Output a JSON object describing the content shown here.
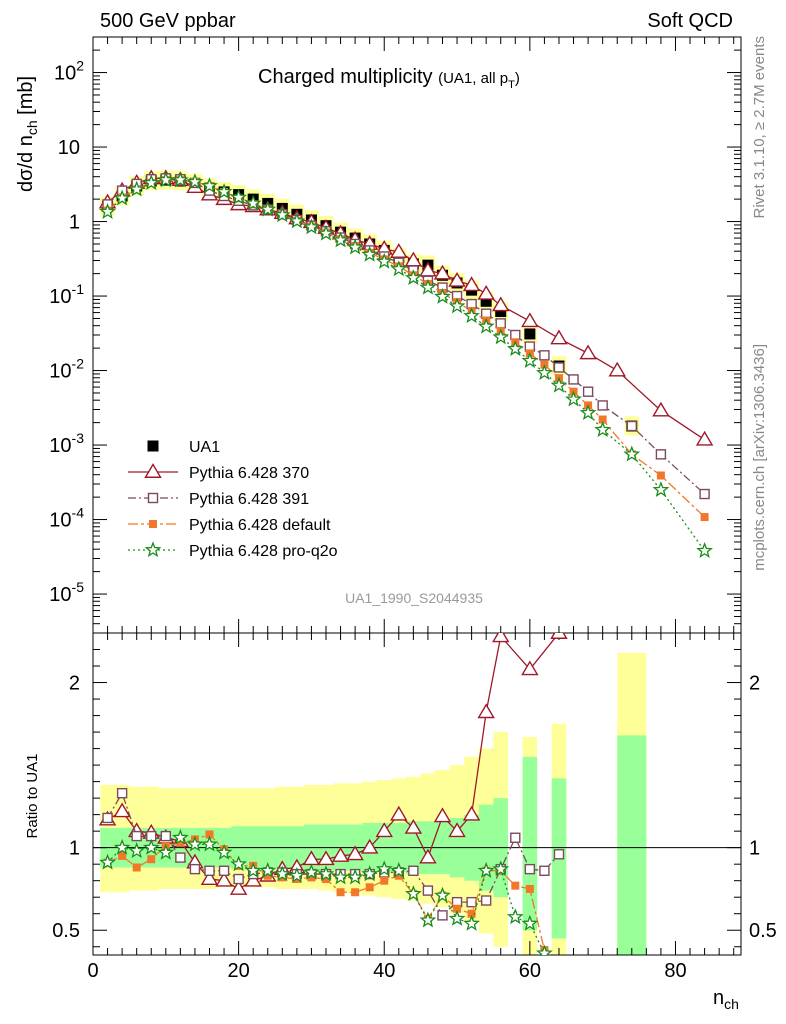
{
  "header": {
    "left": "500 GeV ppbar",
    "right": "Soft QCD"
  },
  "side_labels": {
    "rivet": "Rivet 3.1.10, ≥ 2.7M events",
    "source": "mcplots.cern.ch [arXiv:1306.3436]"
  },
  "watermark": "UA1_1990_S2044935",
  "chart_data": {
    "type": "scatter",
    "title": "Charged multiplicity",
    "title_sub": "(UA1, all p",
    "title_sub2": "T",
    "title_sub3": ")",
    "xlabel": "n",
    "xlabel_sub": "ch",
    "ylabel": "dσ/d n",
    "ylabel_sub": "ch",
    "ylabel_unit": " [mb]",
    "ratio_ylabel": "Ratio to UA1",
    "xlim": [
      0,
      89
    ],
    "ylim": [
      3e-06,
      300
    ],
    "ratio_ylim": [
      0.35,
      2.3
    ],
    "yscale": "log",
    "x_ticks": [
      "0",
      "20",
      "40",
      "60",
      "80"
    ],
    "y_ticks": [
      {
        "mant": "10",
        "exp": "-5"
      },
      {
        "mant": "10",
        "exp": "-4"
      },
      {
        "mant": "10",
        "exp": "-3"
      },
      {
        "mant": "10",
        "exp": "-2"
      },
      {
        "mant": "10",
        "exp": "-1"
      },
      {
        "mant": "1",
        "exp": ""
      },
      {
        "mant": "10",
        "exp": ""
      },
      {
        "mant": "10",
        "exp": "2"
      }
    ],
    "ratio_ticks": [
      "0.5",
      "1",
      "2"
    ],
    "legend_position": "lower-left",
    "data": {
      "name": "UA1",
      "x": [
        2,
        4,
        6,
        8,
        10,
        12,
        14,
        16,
        18,
        20,
        22,
        24,
        26,
        28,
        30,
        32,
        34,
        36,
        38,
        40,
        42,
        44,
        46,
        48,
        50,
        52,
        54,
        56,
        60,
        64,
        74
      ],
      "y": [
        1.6,
        2.2,
        3.0,
        3.5,
        3.6,
        3.5,
        3.2,
        2.8,
        2.5,
        2.3,
        2.0,
        1.75,
        1.5,
        1.25,
        1.05,
        0.88,
        0.72,
        0.6,
        0.5,
        0.41,
        0.33,
        0.27,
        0.26,
        0.19,
        0.15,
        0.12,
        0.085,
        0.062,
        0.031,
        0.0115,
        0.0018
      ]
    },
    "band_ratio": {
      "x": [
        1,
        3,
        5,
        7,
        9,
        11,
        13,
        15,
        17,
        19,
        21,
        23,
        25,
        27,
        29,
        31,
        33,
        35,
        37,
        39,
        41,
        43,
        45,
        47,
        49,
        51,
        53,
        55,
        57,
        59,
        61,
        63,
        65,
        72,
        76
      ],
      "green_lo": [
        0.88,
        0.88,
        0.88,
        0.88,
        0.88,
        0.88,
        0.88,
        0.88,
        0.88,
        0.87,
        0.87,
        0.87,
        0.87,
        0.87,
        0.86,
        0.86,
        0.86,
        0.86,
        0.85,
        0.85,
        0.85,
        0.84,
        0.84,
        0.84,
        0.82,
        0.8,
        0.74,
        0.7
      ],
      "green_hi": [
        1.12,
        1.12,
        1.12,
        1.12,
        1.12,
        1.12,
        1.12,
        1.12,
        1.12,
        1.13,
        1.13,
        1.13,
        1.13,
        1.13,
        1.14,
        1.14,
        1.14,
        1.14,
        1.15,
        1.15,
        1.15,
        1.16,
        1.16,
        1.16,
        1.18,
        1.2,
        1.26,
        1.3
      ],
      "yellow_lo": [
        0.73,
        0.73,
        0.74,
        0.74,
        0.75,
        0.75,
        0.75,
        0.75,
        0.76,
        0.76,
        0.76,
        0.76,
        0.75,
        0.75,
        0.75,
        0.74,
        0.73,
        0.72,
        0.71,
        0.7,
        0.69,
        0.68,
        0.66,
        0.64,
        0.6,
        0.55,
        0.48,
        0.4
      ],
      "yellow_hi": [
        1.38,
        1.38,
        1.37,
        1.37,
        1.36,
        1.36,
        1.36,
        1.36,
        1.36,
        1.36,
        1.36,
        1.36,
        1.37,
        1.37,
        1.38,
        1.38,
        1.39,
        1.39,
        1.4,
        1.41,
        1.42,
        1.43,
        1.45,
        1.47,
        1.5,
        1.55,
        1.6,
        1.7
      ],
      "extra": [
        {
          "x0": 59,
          "x1": 61,
          "green": [
            0.5,
            1.55
          ],
          "yellow": [
            0.35,
            1.67
          ]
        },
        {
          "x0": 63,
          "x1": 65,
          "green": [
            0.45,
            1.42
          ],
          "yellow": [
            0.35,
            1.75
          ]
        },
        {
          "x0": 72,
          "x1": 76,
          "green": [
            0.35,
            1.68
          ],
          "yellow": [
            0.35,
            2.18
          ]
        }
      ]
    },
    "series": [
      {
        "name": "Pythia 6.428 370",
        "color": "#a0182a",
        "marker": "triangle",
        "dash": "",
        "x": [
          2,
          4,
          6,
          8,
          10,
          12,
          14,
          16,
          18,
          20,
          22,
          24,
          26,
          28,
          30,
          32,
          34,
          36,
          38,
          40,
          42,
          44,
          46,
          48,
          50,
          52,
          54,
          56,
          60,
          64,
          68,
          72,
          78,
          84
        ],
        "y": [
          1.8,
          2.6,
          3.3,
          3.8,
          3.8,
          3.6,
          2.9,
          2.3,
          2.0,
          1.7,
          1.6,
          1.45,
          1.3,
          1.1,
          0.98,
          0.82,
          0.69,
          0.57,
          0.5,
          0.43,
          0.39,
          0.3,
          0.22,
          0.2,
          0.16,
          0.14,
          0.107,
          0.075,
          0.046,
          0.027,
          0.017,
          0.01,
          0.0029,
          0.00118
        ],
        "ratio": [
          1.17,
          1.22,
          1.1,
          1.09,
          1.06,
          1.04,
          0.91,
          0.81,
          0.8,
          0.75,
          0.8,
          0.83,
          0.87,
          0.88,
          0.93,
          0.93,
          0.95,
          0.96,
          1.0,
          1.1,
          1.2,
          1.12,
          0.94,
          1.19,
          1.1,
          1.2,
          1.82,
          2.28,
          2.08,
          2.3
        ]
      },
      {
        "name": "Pythia 6.428 391",
        "color": "#7a4a5e",
        "marker": "square-open",
        "dash": "8,3,2,3",
        "x": [
          2,
          4,
          6,
          8,
          10,
          12,
          14,
          16,
          18,
          20,
          22,
          24,
          26,
          28,
          30,
          32,
          34,
          36,
          38,
          40,
          42,
          44,
          46,
          48,
          50,
          52,
          54,
          56,
          58,
          60,
          62,
          64,
          66,
          68,
          70,
          74,
          78,
          84
        ],
        "y": [
          1.7,
          2.6,
          3.2,
          3.7,
          3.8,
          3.7,
          3.3,
          2.6,
          2.2,
          1.9,
          1.65,
          1.45,
          1.25,
          1.05,
          0.88,
          0.74,
          0.61,
          0.5,
          0.41,
          0.34,
          0.28,
          0.22,
          0.16,
          0.13,
          0.1,
          0.078,
          0.058,
          0.043,
          0.03,
          0.021,
          0.016,
          0.011,
          0.0076,
          0.0052,
          0.0034,
          0.0018,
          0.00075,
          0.00022
        ],
        "ratio": [
          1.18,
          1.33,
          1.07,
          1.07,
          1.07,
          0.94,
          0.87,
          0.86,
          0.86,
          0.81,
          0.84,
          0.85,
          0.85,
          0.84,
          0.84,
          0.84,
          0.84,
          0.84,
          0.84,
          0.85,
          0.85,
          0.86,
          0.74,
          0.59,
          0.67,
          0.67,
          0.68,
          0.87,
          1.06,
          0.87,
          0.86,
          0.96
        ]
      },
      {
        "name": "Pythia 6.428 default",
        "color": "#f07828",
        "marker": "square",
        "dash": "10,3,3,3",
        "x": [
          2,
          4,
          6,
          8,
          10,
          12,
          14,
          16,
          18,
          20,
          22,
          24,
          26,
          28,
          30,
          32,
          34,
          36,
          38,
          40,
          42,
          44,
          46,
          48,
          50,
          52,
          54,
          56,
          58,
          60,
          62,
          64,
          66,
          68,
          70,
          74,
          78,
          84
        ],
        "y": [
          1.4,
          2.1,
          2.7,
          3.3,
          3.6,
          3.6,
          3.4,
          3.0,
          2.5,
          2.05,
          1.7,
          1.45,
          1.22,
          1.02,
          0.86,
          0.71,
          0.58,
          0.47,
          0.38,
          0.31,
          0.25,
          0.19,
          0.145,
          0.11,
          0.083,
          0.063,
          0.047,
          0.034,
          0.024,
          0.017,
          0.012,
          0.0079,
          0.0052,
          0.0034,
          0.0022,
          0.00075,
          0.00039,
          0.000108
        ],
        "ratio": [
          0.91,
          0.95,
          0.88,
          0.93,
          1.01,
          1.03,
          1.05,
          1.08,
          0.99,
          0.89,
          0.89,
          0.83,
          0.82,
          0.81,
          0.82,
          0.81,
          0.73,
          0.73,
          0.76,
          0.8,
          0.83,
          0.72,
          0.57,
          0.71,
          0.63,
          0.6,
          0.86,
          0.86,
          0.77,
          0.75,
          0.38
        ]
      },
      {
        "name": "Pythia 6.428 pro-q2o",
        "color": "#1a8c1a",
        "marker": "star",
        "dash": "2,3",
        "x": [
          2,
          4,
          6,
          8,
          10,
          12,
          14,
          16,
          18,
          20,
          22,
          24,
          26,
          28,
          30,
          32,
          34,
          36,
          38,
          40,
          42,
          44,
          46,
          48,
          50,
          52,
          54,
          56,
          58,
          60,
          62,
          64,
          66,
          68,
          70,
          74,
          78,
          84
        ],
        "y": [
          1.35,
          2.05,
          2.7,
          3.3,
          3.6,
          3.6,
          3.4,
          3.0,
          2.5,
          2.1,
          1.75,
          1.45,
          1.22,
          1.01,
          0.84,
          0.69,
          0.56,
          0.45,
          0.36,
          0.29,
          0.23,
          0.175,
          0.13,
          0.098,
          0.073,
          0.054,
          0.039,
          0.028,
          0.0195,
          0.0135,
          0.0093,
          0.0063,
          0.0041,
          0.0027,
          0.0016,
          0.00075,
          0.00025,
          3.8e-05
        ],
        "ratio": [
          0.91,
          1.0,
          0.98,
          1.0,
          0.97,
          1.06,
          1.02,
          1.02,
          0.97,
          0.9,
          0.86,
          0.86,
          0.84,
          0.83,
          0.85,
          0.84,
          0.82,
          0.82,
          0.84,
          0.87,
          0.86,
          0.72,
          0.56,
          0.71,
          0.57,
          0.54,
          0.86,
          0.87,
          0.58,
          0.54,
          0.36
        ]
      }
    ]
  }
}
